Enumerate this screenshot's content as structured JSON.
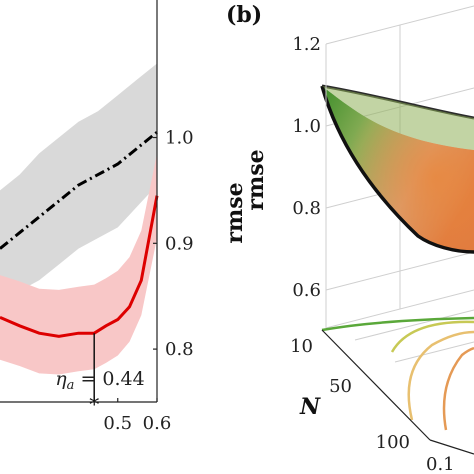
{
  "chart_data": [
    {
      "type": "line",
      "panel_label": "",
      "xlabel": "",
      "ylabel": "rmse",
      "y_ticks": [
        "0.8",
        "0.9",
        "1.0"
      ],
      "x_ticks": [
        "0.5",
        "0.6"
      ],
      "ylim": [
        0.75,
        1.13
      ],
      "xlim": [
        0.2,
        0.6
      ],
      "series": [
        {
          "style": "dash-dot",
          "color": "#000000",
          "x": [
            0.2,
            0.25,
            0.3,
            0.35,
            0.4,
            0.45,
            0.5,
            0.55,
            0.6
          ],
          "values": [
            0.895,
            0.91,
            0.925,
            0.94,
            0.955,
            0.965,
            0.975,
            0.99,
            1.005
          ],
          "band_lower": [
            0.84,
            0.855,
            0.865,
            0.88,
            0.895,
            0.905,
            0.915,
            0.935,
            0.955
          ],
          "band_upper": [
            0.95,
            0.965,
            0.985,
            1.0,
            1.015,
            1.025,
            1.04,
            1.055,
            1.07
          ],
          "band_color": "#d9d9d9"
        },
        {
          "style": "solid",
          "color": "#dd0000",
          "x": [
            0.2,
            0.25,
            0.3,
            0.35,
            0.4,
            0.44,
            0.47,
            0.5,
            0.53,
            0.56,
            0.6
          ],
          "values": [
            0.83,
            0.822,
            0.815,
            0.812,
            0.815,
            0.815,
            0.822,
            0.828,
            0.84,
            0.865,
            0.945
          ],
          "band_lower": [
            0.79,
            0.784,
            0.777,
            0.776,
            0.779,
            0.781,
            0.787,
            0.794,
            0.807,
            0.832,
            0.905
          ],
          "band_upper": [
            0.87,
            0.864,
            0.857,
            0.856,
            0.859,
            0.861,
            0.867,
            0.874,
            0.887,
            0.912,
            0.985
          ],
          "band_color": "#f8c7c7"
        }
      ],
      "marker": {
        "x": 0.44,
        "symbol": "*"
      },
      "annotation": "η_a = 0.44"
    },
    {
      "type": "surface",
      "panel_label": "(b)",
      "zlabel": "rmse",
      "z_ticks": [
        "0.6",
        "0.8",
        "1.0",
        "1.2"
      ],
      "ylabel": "N",
      "y_ticks": [
        "10",
        "50",
        "100"
      ],
      "x_ticks": [
        "0.1"
      ],
      "surface_colors": [
        "#3e8e2b",
        "#8fb05a",
        "#d8a47a",
        "#e07a3f"
      ],
      "contour_colors": [
        "#5aa83a",
        "#c7c955",
        "#e8c070",
        "#e59a55"
      ]
    }
  ]
}
